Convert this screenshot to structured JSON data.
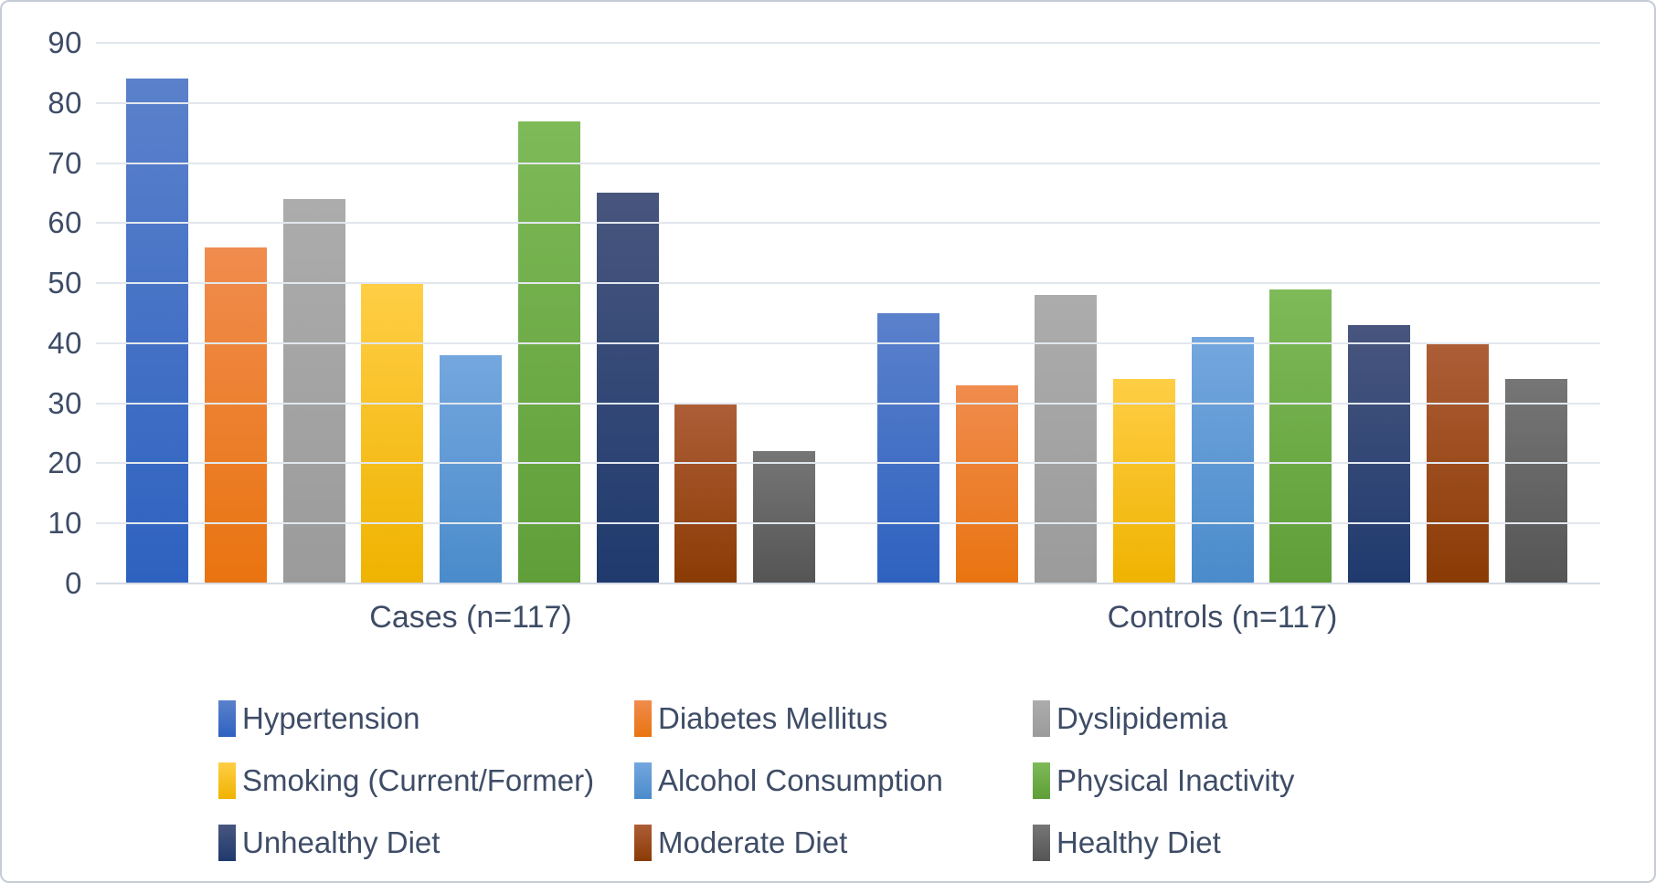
{
  "chart_data": {
    "type": "bar",
    "title": "",
    "xlabel": "",
    "ylabel": "",
    "ylim": [
      0,
      90
    ],
    "yticks": [
      0,
      10,
      20,
      30,
      40,
      50,
      60,
      70,
      80,
      90
    ],
    "grid": true,
    "legend_position": "bottom",
    "categories": [
      "Cases (n=117)",
      "Controls (n=117)"
    ],
    "series": [
      {
        "name": "Hypertension",
        "values": [
          84,
          45
        ],
        "color_top": "#5b81cb",
        "color_bottom": "#2e62c0"
      },
      {
        "name": "Diabetes Mellitus",
        "values": [
          56,
          33
        ],
        "color_top": "#f08c4e",
        "color_bottom": "#e97410"
      },
      {
        "name": "Dyslipidemia",
        "values": [
          64,
          48
        ],
        "color_top": "#acacac",
        "color_bottom": "#9b9b9b"
      },
      {
        "name": "Smoking (Current/Former)",
        "values": [
          50,
          34
        ],
        "color_top": "#ffce45",
        "color_bottom": "#efb300"
      },
      {
        "name": "Alcohol Consumption",
        "values": [
          38,
          41
        ],
        "color_top": "#74a7de",
        "color_bottom": "#4a8bcb"
      },
      {
        "name": "Physical Inactivity",
        "values": [
          77,
          49
        ],
        "color_top": "#7eba58",
        "color_bottom": "#5f9e38"
      },
      {
        "name": "Unhealthy Diet",
        "values": [
          65,
          43
        ],
        "color_top": "#48567e",
        "color_bottom": "#1f3a6e"
      },
      {
        "name": "Moderate Diet",
        "values": [
          30,
          40
        ],
        "color_top": "#ae5e37",
        "color_bottom": "#8a3b04"
      },
      {
        "name": "Healthy Diet",
        "values": [
          22,
          34
        ],
        "color_top": "#767676",
        "color_bottom": "#555555"
      }
    ],
    "colors": {
      "text": "#3e4c66",
      "gridline": "#e2e7ee",
      "axis_line": "#d5dbe5",
      "frame_border": "#c6ccd5",
      "background": "#ffffff"
    }
  }
}
